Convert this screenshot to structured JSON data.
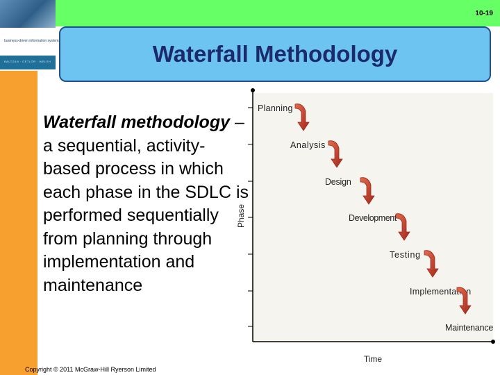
{
  "slide": {
    "number": "10-19",
    "title": "Waterfall Methodology"
  },
  "body": {
    "term": "Waterfall methodology",
    "definition": " – a sequential, activity-based process in which each phase in the SDLC is performed sequentially from planning through implementation and maintenance"
  },
  "footer": {
    "copyright": "Copyright © 2011 McGraw-Hill Ryerson Limited"
  },
  "diagram": {
    "y_axis_label": "Phase",
    "x_axis_label": "Time",
    "phases": [
      "Planning",
      "Analysis",
      "Design",
      "Development",
      "Testing",
      "Implementation",
      "Maintenance"
    ],
    "colors": {
      "arrow": "#a1281c",
      "arrow_highlight": "#e26b4d",
      "axis": "#000000"
    }
  },
  "book_cover": {
    "subtitle": "business-driven information systems",
    "bar_text": "BALTZAN · DETLOR · WELSH"
  }
}
